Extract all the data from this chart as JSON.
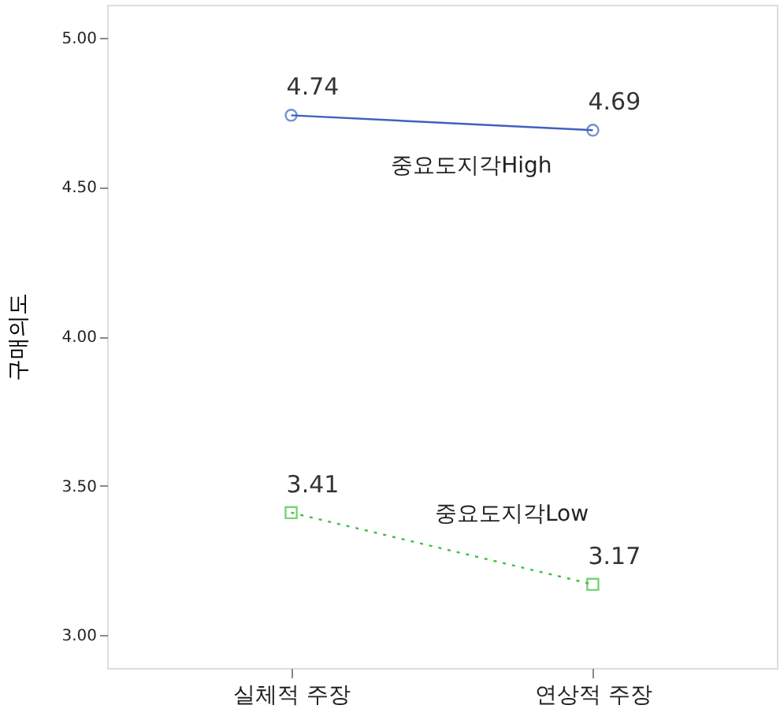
{
  "chart_data": {
    "type": "line",
    "ylabel": "구매의도",
    "categories": [
      "실체적 주장",
      "연상적 주장"
    ],
    "series": [
      {
        "name": "중요도지각High",
        "color": "#4060c0",
        "values": [
          4.74,
          4.69
        ],
        "marker": "circle",
        "line_style": "solid"
      },
      {
        "name": "중요도지각Low",
        "color": "#40c040",
        "values": [
          3.41,
          3.17
        ],
        "marker": "square",
        "line_style": "dotted"
      }
    ],
    "ylim": [
      2.89,
      5.11
    ],
    "yticks": [
      {
        "value": 3.0,
        "label": "3.00"
      },
      {
        "value": 3.5,
        "label": "3.50"
      },
      {
        "value": 4.0,
        "label": "4.00"
      },
      {
        "value": 4.5,
        "label": "4.50"
      },
      {
        "value": 5.0,
        "label": "5.00"
      }
    ],
    "data_labels": true,
    "grid": false
  }
}
